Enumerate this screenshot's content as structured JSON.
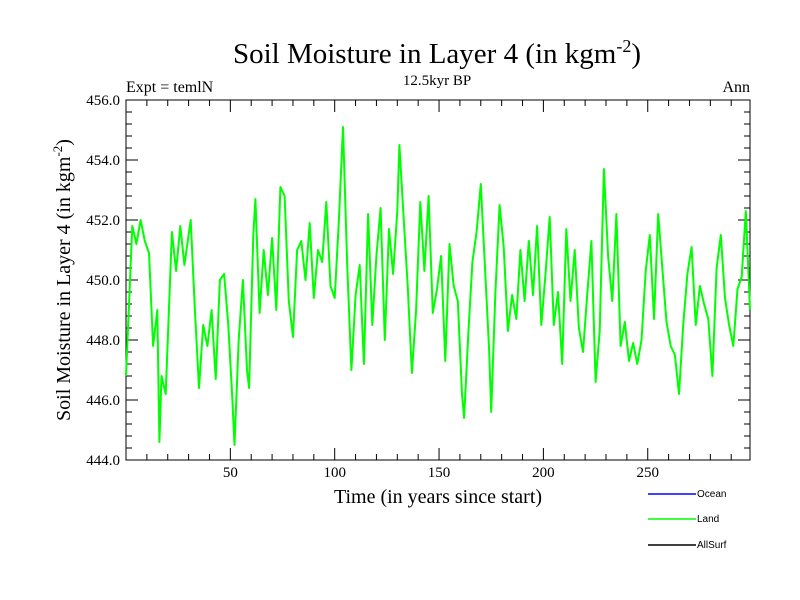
{
  "chart_data": {
    "type": "line",
    "title": "Soil Moisture in Layer 4 (in kgm",
    "title_sup": "-2",
    "title_end": ")",
    "subtitle": "12.5kyr BP",
    "left_label": "Expt = temlN",
    "right_label": "Ann",
    "xlabel": "Time (in years since start)",
    "ylabel": "Soil Moisture in Layer 4 (in kgm",
    "ylabel_sup": "-2",
    "ylabel_end": ")",
    "xlim": [
      0,
      299
    ],
    "ylim": [
      444.0,
      456.0
    ],
    "x_ticks": [
      50,
      100,
      150,
      200,
      250
    ],
    "x_tick_labels": [
      "50",
      "100",
      "150",
      "200",
      "250"
    ],
    "y_ticks": [
      444,
      446,
      448,
      450,
      452,
      454,
      456
    ],
    "y_tick_labels": [
      "444.0",
      "446.0",
      "448.0",
      "450.0",
      "452.0",
      "454.0",
      "456.0"
    ],
    "legend": [
      {
        "name": "Ocean",
        "color": "#0000ff"
      },
      {
        "name": "Land",
        "color": "#00ff00"
      },
      {
        "name": "AllSurf",
        "color": "#000000"
      }
    ],
    "series": [
      {
        "name": "Land",
        "color": "#00ff00",
        "keypoints": [
          [
            0,
            446.8
          ],
          [
            3,
            451.8
          ],
          [
            5,
            451.2
          ],
          [
            7,
            452.0
          ],
          [
            9,
            451.3
          ],
          [
            11,
            450.9
          ],
          [
            13,
            447.8
          ],
          [
            15,
            449.0
          ],
          [
            16,
            444.6
          ],
          [
            17,
            446.8
          ],
          [
            19,
            446.2
          ],
          [
            22,
            451.6
          ],
          [
            24,
            450.3
          ],
          [
            26,
            451.8
          ],
          [
            28,
            450.5
          ],
          [
            31,
            452.0
          ],
          [
            33,
            449.0
          ],
          [
            35,
            446.4
          ],
          [
            37,
            448.5
          ],
          [
            39,
            447.8
          ],
          [
            41,
            449.0
          ],
          [
            43,
            446.7
          ],
          [
            45,
            450.0
          ],
          [
            47,
            450.2
          ],
          [
            49,
            448.5
          ],
          [
            51,
            446.0
          ],
          [
            52,
            444.5
          ],
          [
            54,
            448.0
          ],
          [
            56,
            450.0
          ],
          [
            58,
            447.0
          ],
          [
            59,
            446.4
          ],
          [
            61,
            451.5
          ],
          [
            62,
            452.7
          ],
          [
            64,
            448.9
          ],
          [
            66,
            451.0
          ],
          [
            68,
            449.5
          ],
          [
            70,
            451.4
          ],
          [
            72,
            449.0
          ],
          [
            74,
            453.1
          ],
          [
            76,
            452.8
          ],
          [
            78,
            449.3
          ],
          [
            80,
            448.1
          ],
          [
            82,
            451.0
          ],
          [
            84,
            451.3
          ],
          [
            86,
            450.0
          ],
          [
            88,
            451.9
          ],
          [
            90,
            449.4
          ],
          [
            92,
            451.0
          ],
          [
            94,
            450.6
          ],
          [
            96,
            452.6
          ],
          [
            98,
            449.8
          ],
          [
            100,
            449.4
          ],
          [
            102,
            452.0
          ],
          [
            104,
            455.1
          ],
          [
            106,
            450.5
          ],
          [
            108,
            447.0
          ],
          [
            110,
            449.5
          ],
          [
            112,
            450.5
          ],
          [
            114,
            447.2
          ],
          [
            116,
            452.2
          ],
          [
            118,
            448.5
          ],
          [
            120,
            450.8
          ],
          [
            122,
            452.4
          ],
          [
            124,
            448.0
          ],
          [
            126,
            451.7
          ],
          [
            128,
            450.2
          ],
          [
            130,
            452.3
          ],
          [
            131,
            454.5
          ],
          [
            133,
            452.1
          ],
          [
            135,
            449.8
          ],
          [
            137,
            446.9
          ],
          [
            139,
            449.0
          ],
          [
            141,
            452.6
          ],
          [
            143,
            450.3
          ],
          [
            145,
            452.8
          ],
          [
            147,
            448.9
          ],
          [
            149,
            449.7
          ],
          [
            151,
            450.8
          ],
          [
            153,
            447.3
          ],
          [
            155,
            451.2
          ],
          [
            157,
            449.8
          ],
          [
            159,
            449.3
          ],
          [
            161,
            446.2
          ],
          [
            162,
            445.4
          ],
          [
            164,
            448.2
          ],
          [
            166,
            450.6
          ],
          [
            168,
            451.6
          ],
          [
            170,
            453.2
          ],
          [
            172,
            450.4
          ],
          [
            174,
            447.7
          ],
          [
            175,
            445.6
          ],
          [
            177,
            449.6
          ],
          [
            179,
            452.5
          ],
          [
            181,
            451.1
          ],
          [
            183,
            448.3
          ],
          [
            185,
            449.5
          ],
          [
            187,
            448.7
          ],
          [
            189,
            451.0
          ],
          [
            191,
            449.3
          ],
          [
            193,
            451.3
          ],
          [
            195,
            449.5
          ],
          [
            197,
            451.8
          ],
          [
            199,
            448.5
          ],
          [
            201,
            450.2
          ],
          [
            203,
            452.1
          ],
          [
            205,
            448.5
          ],
          [
            207,
            449.6
          ],
          [
            209,
            447.2
          ],
          [
            211,
            451.7
          ],
          [
            213,
            449.3
          ],
          [
            215,
            451.0
          ],
          [
            217,
            448.4
          ],
          [
            219,
            447.6
          ],
          [
            221,
            449.5
          ],
          [
            223,
            451.3
          ],
          [
            225,
            446.6
          ],
          [
            227,
            448.3
          ],
          [
            229,
            453.7
          ],
          [
            231,
            450.8
          ],
          [
            233,
            449.3
          ],
          [
            235,
            452.2
          ],
          [
            237,
            447.8
          ],
          [
            239,
            448.6
          ],
          [
            241,
            447.3
          ],
          [
            243,
            447.9
          ],
          [
            245,
            447.2
          ],
          [
            247,
            448.0
          ],
          [
            249,
            450.3
          ],
          [
            251,
            451.5
          ],
          [
            253,
            448.7
          ],
          [
            255,
            452.2
          ],
          [
            257,
            450.4
          ],
          [
            259,
            448.6
          ],
          [
            261,
            447.8
          ],
          [
            263,
            447.5
          ],
          [
            265,
            446.2
          ],
          [
            267,
            448.5
          ],
          [
            269,
            450.2
          ],
          [
            271,
            451.1
          ],
          [
            273,
            448.5
          ],
          [
            275,
            449.8
          ],
          [
            277,
            449.2
          ],
          [
            279,
            448.7
          ],
          [
            281,
            446.8
          ],
          [
            283,
            450.4
          ],
          [
            285,
            451.5
          ],
          [
            287,
            449.4
          ],
          [
            289,
            448.5
          ],
          [
            291,
            447.8
          ],
          [
            293,
            449.7
          ],
          [
            295,
            450.1
          ],
          [
            297,
            452.3
          ],
          [
            299,
            449.0
          ]
        ]
      }
    ]
  }
}
